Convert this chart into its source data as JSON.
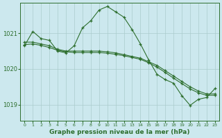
{
  "bg_color": "#cce8ee",
  "grid_color": "#aacccc",
  "line_color": "#2d6e2d",
  "marker_color": "#2d6e2d",
  "title": "Graphe pression niveau de la mer (hPa)",
  "xlim": [
    -0.5,
    23.5
  ],
  "ylim": [
    1018.55,
    1021.85
  ],
  "yticks": [
    1019,
    1020,
    1021
  ],
  "xticks": [
    0,
    1,
    2,
    3,
    4,
    5,
    6,
    7,
    8,
    9,
    10,
    11,
    12,
    13,
    14,
    15,
    16,
    17,
    18,
    19,
    20,
    21,
    22,
    23
  ],
  "series1_x": [
    0,
    1,
    2,
    3,
    4,
    5,
    6,
    7,
    8,
    9,
    10,
    11,
    12,
    13,
    14,
    15,
    16,
    17,
    18,
    19,
    20,
    21,
    22,
    23
  ],
  "series1_y": [
    1020.65,
    1021.05,
    1020.85,
    1020.8,
    1020.5,
    1020.45,
    1020.65,
    1021.15,
    1021.35,
    1021.65,
    1021.75,
    1021.6,
    1021.45,
    1021.1,
    1020.7,
    1020.25,
    1019.85,
    1019.7,
    1019.6,
    1019.25,
    1018.98,
    1019.15,
    1019.2,
    1019.45
  ],
  "series2_x": [
    0,
    1,
    2,
    3,
    4,
    5,
    6,
    7,
    8,
    9,
    10,
    11,
    12,
    13,
    14,
    15,
    16,
    17,
    18,
    19,
    20,
    21,
    22,
    23
  ],
  "series2_y": [
    1020.75,
    1020.75,
    1020.7,
    1020.65,
    1020.55,
    1020.5,
    1020.5,
    1020.5,
    1020.5,
    1020.5,
    1020.48,
    1020.45,
    1020.4,
    1020.35,
    1020.3,
    1020.2,
    1020.1,
    1019.95,
    1019.8,
    1019.65,
    1019.5,
    1019.38,
    1019.3,
    1019.3
  ],
  "series3_x": [
    0,
    1,
    2,
    3,
    4,
    5,
    6,
    7,
    8,
    9,
    10,
    11,
    12,
    13,
    14,
    15,
    16,
    17,
    18,
    19,
    20,
    21,
    22,
    23
  ],
  "series3_y": [
    1020.68,
    1020.7,
    1020.66,
    1020.6,
    1020.52,
    1020.48,
    1020.46,
    1020.46,
    1020.46,
    1020.46,
    1020.44,
    1020.41,
    1020.37,
    1020.32,
    1020.27,
    1020.17,
    1020.05,
    1019.9,
    1019.74,
    1019.59,
    1019.44,
    1019.33,
    1019.26,
    1019.26
  ]
}
